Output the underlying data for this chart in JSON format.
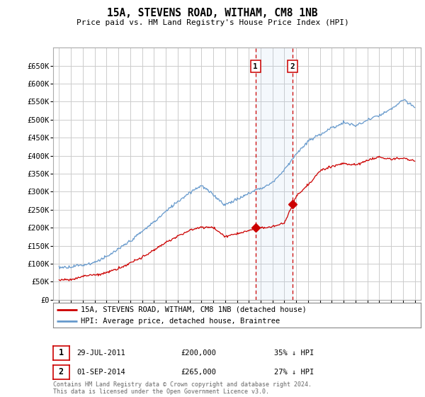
{
  "title": "15A, STEVENS ROAD, WITHAM, CM8 1NB",
  "subtitle": "Price paid vs. HM Land Registry's House Price Index (HPI)",
  "legend_line1": "15A, STEVENS ROAD, WITHAM, CM8 1NB (detached house)",
  "legend_line2": "HPI: Average price, detached house, Braintree",
  "red_color": "#cc0000",
  "blue_color": "#6699cc",
  "sale1_label": "1",
  "sale1_date": "29-JUL-2011",
  "sale1_price": "£200,000",
  "sale1_pct": "35% ↓ HPI",
  "sale1_x": 2011.57,
  "sale1_y": 200000,
  "sale2_label": "2",
  "sale2_date": "01-SEP-2014",
  "sale2_price": "£265,000",
  "sale2_pct": "27% ↓ HPI",
  "sale2_x": 2014.67,
  "sale2_y": 265000,
  "footer": "Contains HM Land Registry data © Crown copyright and database right 2024.\nThis data is licensed under the Open Government Licence v3.0.",
  "ylim": [
    0,
    700000
  ],
  "xlim_left": 1994.5,
  "xlim_right": 2025.5,
  "background_color": "#ffffff",
  "grid_color": "#cccccc",
  "hpi_x_nodes": [
    1995,
    1996,
    1997,
    1998,
    1999,
    2000,
    2001,
    2002,
    2003,
    2004,
    2005,
    2006,
    2007,
    2008,
    2009,
    2010,
    2011,
    2012,
    2013,
    2014,
    2015,
    2016,
    2017,
    2018,
    2019,
    2020,
    2021,
    2022,
    2023,
    2024,
    2024.5,
    2025
  ],
  "hpi_y_nodes": [
    90000,
    92000,
    98000,
    105000,
    120000,
    140000,
    160000,
    185000,
    210000,
    245000,
    270000,
    295000,
    315000,
    290000,
    260000,
    275000,
    290000,
    305000,
    320000,
    355000,
    400000,
    435000,
    455000,
    475000,
    490000,
    480000,
    500000,
    510000,
    530000,
    555000,
    545000,
    535000
  ],
  "red_x_nodes": [
    1995,
    1996,
    1997,
    1998,
    1999,
    2000,
    2001,
    2002,
    2003,
    2004,
    2005,
    2006,
    2007,
    2008,
    2009,
    2010,
    2011,
    2011.57,
    2012,
    2013,
    2014,
    2014.67,
    2015,
    2016,
    2017,
    2018,
    2019,
    2020,
    2021,
    2022,
    2023,
    2024,
    2025
  ],
  "red_y_nodes": [
    55000,
    57000,
    64000,
    70000,
    76000,
    90000,
    105000,
    120000,
    140000,
    160000,
    180000,
    195000,
    205000,
    205000,
    178000,
    185000,
    192000,
    200000,
    200000,
    205000,
    215000,
    265000,
    290000,
    320000,
    360000,
    375000,
    385000,
    378000,
    390000,
    400000,
    390000,
    395000,
    385000
  ]
}
